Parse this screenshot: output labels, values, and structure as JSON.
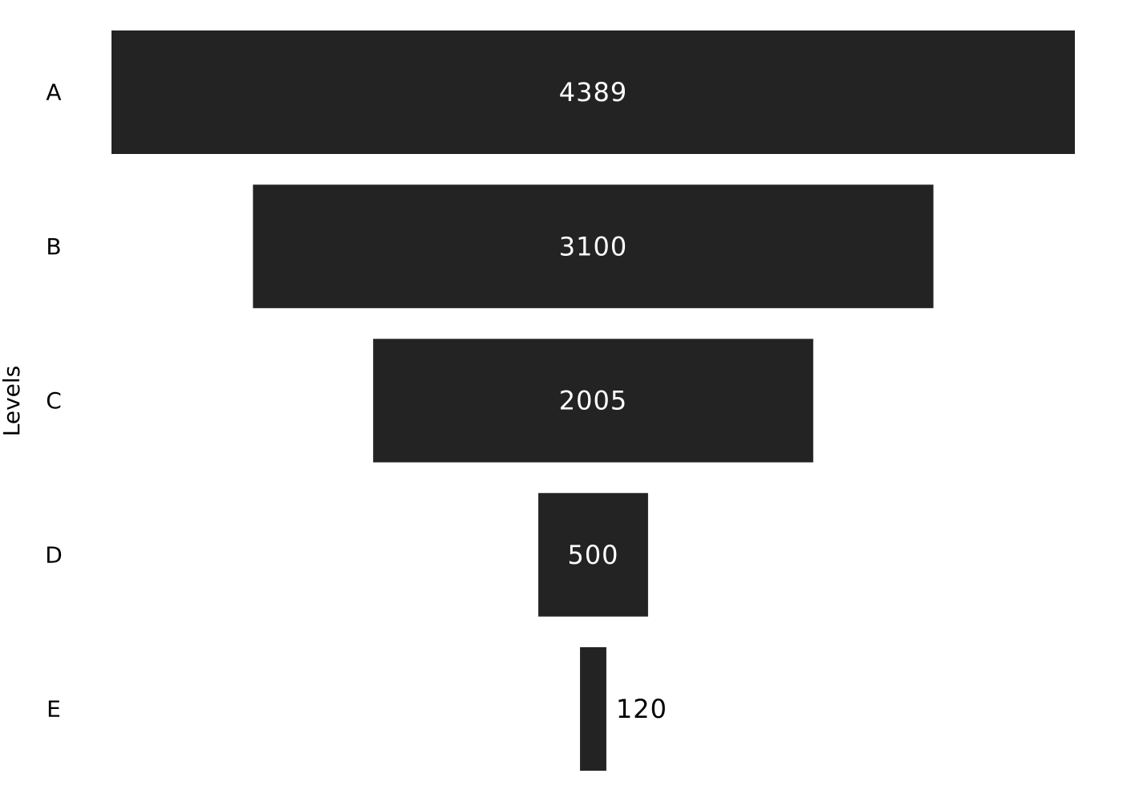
{
  "chart_data": {
    "type": "funnel",
    "orientation": "horizontal",
    "categories": [
      "A",
      "B",
      "C",
      "D",
      "E"
    ],
    "values": [
      4389,
      3100,
      2005,
      500,
      120
    ],
    "ylabel": "Levels",
    "grid": false,
    "legend": "none"
  },
  "colors": {
    "bar": "#232323",
    "label_inside": "#ffffff",
    "label_outside": "#000000",
    "axis_text": "#000000",
    "background": "#ffffff"
  }
}
